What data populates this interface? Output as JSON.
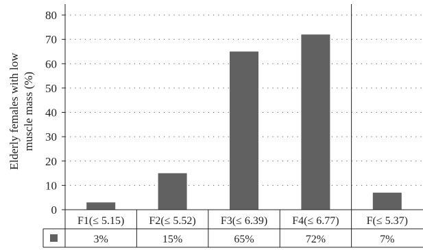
{
  "chart_data": {
    "type": "bar",
    "ylabel_lines": [
      "Elderly females with low",
      "muscle mass (%)"
    ],
    "categories": [
      "F1(≤ 5.15)",
      "F2(≤ 5.52)",
      "F3(≤ 6.39)",
      "F4(≤ 6.77)",
      "F(≤ 5.37)"
    ],
    "values": [
      3,
      15,
      65,
      72,
      7
    ],
    "value_labels": [
      "3%",
      "15%",
      "65%",
      "72%",
      "7%"
    ],
    "ylim": [
      0,
      80
    ],
    "yticks": [
      "0",
      "10",
      "20",
      "30",
      "40",
      "50",
      "60",
      "70",
      "80"
    ],
    "grid": true,
    "grid_style": "dotted",
    "separator_before_category": 4,
    "legend_in_table": true,
    "colors": {
      "bar": "#616161",
      "axis": "#222222",
      "grid": "#555555"
    }
  }
}
